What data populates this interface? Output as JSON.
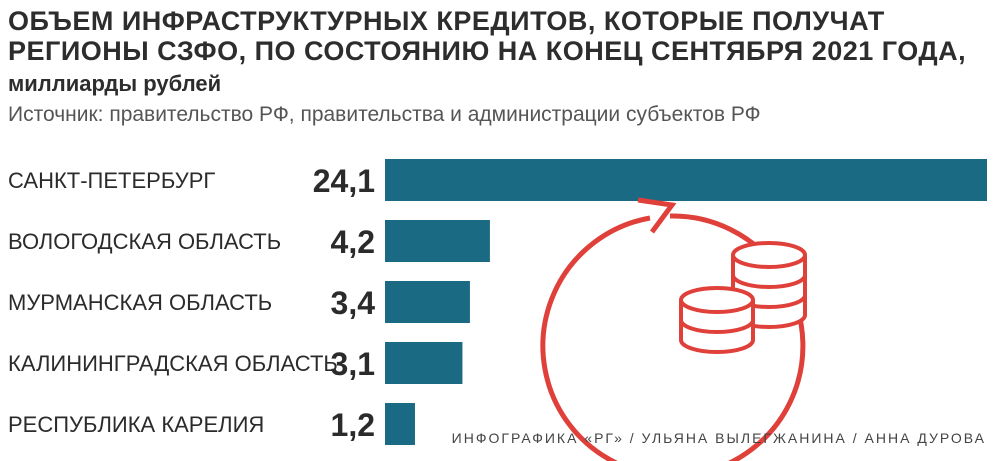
{
  "title": "ОБЪЕМ ИНФРАСТРУКТУРНЫХ КРЕДИТОВ, КОТОРЫЕ ПОЛУЧАТ\nРЕГИОНЫ СЗФО, ПО СОСТОЯНИЮ НА КОНЕЦ СЕНТЯБРЯ 2021 ГОДА,",
  "unit": "миллиарды рублей",
  "source": "Источник: правительство РФ, правительства и администрации субъектов РФ",
  "credit": "ИНФОГРАФИКА «РГ» / УЛЬЯНА ВЫЛЕГЖАНИНА / АННА ДУРОВА",
  "colors": {
    "bar": "#1a6a84",
    "accent": "#e0403a",
    "text": "#2b2b2b"
  },
  "icon": "coins-refresh-icon",
  "chart_data": {
    "type": "bar",
    "orientation": "horizontal",
    "categories": [
      "САНКТ-ПЕТЕРБУРГ",
      "ВОЛОГОДСКАЯ ОБЛАСТЬ",
      "МУРМАНСКАЯ ОБЛАСТЬ",
      "КАЛИНИНГРАДСКАЯ ОБЛАСТЬ",
      "РЕСПУБЛИКА КАРЕЛИЯ"
    ],
    "values": [
      24.1,
      4.2,
      3.4,
      3.1,
      1.2
    ],
    "value_labels": [
      "24,1",
      "4,2",
      "3,4",
      "3,1",
      "1,2"
    ],
    "xlim": [
      0,
      24.1
    ],
    "grid": false
  }
}
